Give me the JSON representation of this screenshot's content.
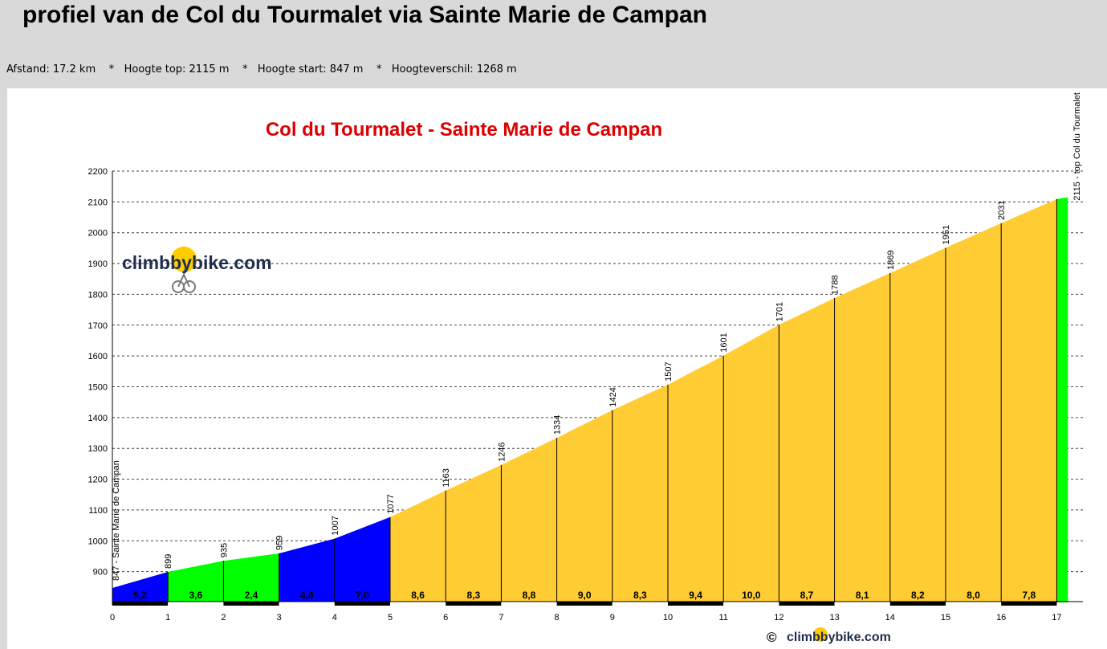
{
  "header": {
    "title": "profiel van de Col du Tourmalet via Sainte Marie de Campan",
    "stats": {
      "distance": "Afstand: 17.2 km",
      "top": "Hoogte top: 2115 m",
      "start": "Hoogte start: 847 m",
      "diff": "Hoogteverschil: 1268 m",
      "separator": "*"
    }
  },
  "watermark": {
    "logo_text": "climbbybike.com",
    "copyright_symbol": "©",
    "footer_text": "climbbybike.com"
  },
  "colors": {
    "blue": "#0000ff",
    "green": "#00ff00",
    "yellow": "#ffcc33",
    "title_red": "#dd0000",
    "logo_text": "#1f2d4d",
    "logo_disc": "#ffcc00"
  },
  "chart_data": {
    "type": "area",
    "title": "Col du Tourmalet - Sainte Marie de Campan",
    "xlabel": "",
    "ylabel": "",
    "xlim": [
      0,
      17.2
    ],
    "ylim": [
      800,
      2200
    ],
    "grid": true,
    "x_ticks": [
      "0",
      "1",
      "2",
      "3",
      "4",
      "5",
      "6",
      "7",
      "8",
      "9",
      "10",
      "11",
      "12",
      "13",
      "14",
      "15",
      "16",
      "17"
    ],
    "y_ticks": [
      "900",
      "1000",
      "1100",
      "1200",
      "1300",
      "1400",
      "1500",
      "1600",
      "1700",
      "1800",
      "1900",
      "2000",
      "2100",
      "2200"
    ],
    "km": [
      0,
      1,
      2,
      3,
      4,
      5,
      6,
      7,
      8,
      9,
      10,
      11,
      12,
      13,
      14,
      15,
      16,
      17,
      17.2
    ],
    "altitude": [
      847,
      899,
      935,
      959,
      1007,
      1077,
      1163,
      1246,
      1334,
      1424,
      1507,
      1601,
      1701,
      1788,
      1869,
      1951,
      2031,
      2109,
      2115
    ],
    "point_labels": [
      "847 - Sainte Marie de Campan",
      "899",
      "935",
      "959",
      "1007",
      "1077",
      "1163",
      "1246",
      "1334",
      "1424",
      "1507",
      "1601",
      "1701",
      "1788",
      "1869",
      "1951",
      "2031",
      "",
      "2115 - top Col du Tourmalet"
    ],
    "segments": [
      {
        "from": 0,
        "to": 1,
        "gradient": "5,2",
        "color": "blue"
      },
      {
        "from": 1,
        "to": 2,
        "gradient": "3,6",
        "color": "green"
      },
      {
        "from": 2,
        "to": 3,
        "gradient": "2,4",
        "color": "green"
      },
      {
        "from": 3,
        "to": 4,
        "gradient": "4,8",
        "color": "blue"
      },
      {
        "from": 4,
        "to": 5,
        "gradient": "7,0",
        "color": "blue"
      },
      {
        "from": 5,
        "to": 6,
        "gradient": "8,6",
        "color": "yellow"
      },
      {
        "from": 6,
        "to": 7,
        "gradient": "8,3",
        "color": "yellow"
      },
      {
        "from": 7,
        "to": 8,
        "gradient": "8,8",
        "color": "yellow"
      },
      {
        "from": 8,
        "to": 9,
        "gradient": "9,0",
        "color": "yellow"
      },
      {
        "from": 9,
        "to": 10,
        "gradient": "8,3",
        "color": "yellow"
      },
      {
        "from": 10,
        "to": 11,
        "gradient": "9,4",
        "color": "yellow"
      },
      {
        "from": 11,
        "to": 12,
        "gradient": "10,0",
        "color": "yellow"
      },
      {
        "from": 12,
        "to": 13,
        "gradient": "8,7",
        "color": "yellow"
      },
      {
        "from": 13,
        "to": 14,
        "gradient": "8,1",
        "color": "yellow"
      },
      {
        "from": 14,
        "to": 15,
        "gradient": "8,2",
        "color": "yellow"
      },
      {
        "from": 15,
        "to": 16,
        "gradient": "8,0",
        "color": "yellow"
      },
      {
        "from": 16,
        "to": 17,
        "gradient": "7,8",
        "color": "yellow"
      },
      {
        "from": 17,
        "to": 17.2,
        "gradient": "",
        "color": "green"
      }
    ]
  }
}
